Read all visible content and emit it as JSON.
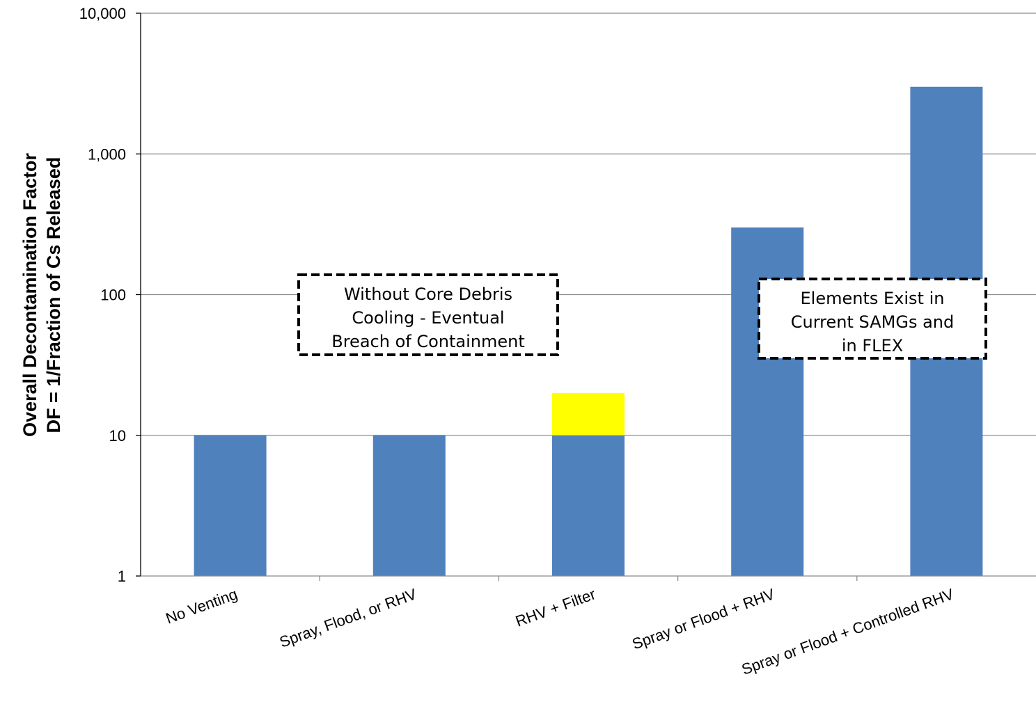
{
  "chart_data": {
    "type": "bar",
    "scale": "log",
    "ylim": [
      1,
      10000
    ],
    "yticks": [
      "1",
      "10",
      "100",
      "1,000",
      "10,000"
    ],
    "ylabel_lines": [
      "Overall Decontamination Factor",
      "DF = 1/Fraction of Cs Released"
    ],
    "xlabel": "",
    "grid": true,
    "categories": [
      "No Venting",
      "Spray, Flood, or RHV",
      "RHV + Filter",
      "Spray or Flood + RHV",
      "Spray or Flood + Controlled RHV"
    ],
    "series": [
      {
        "values": [
          10,
          10,
          10,
          300,
          3000
        ],
        "color": "#4F81BD"
      },
      {
        "values": [
          0,
          0,
          10,
          0,
          0
        ],
        "color": "#FFFF00"
      }
    ],
    "annotations": [
      {
        "lines": [
          "Without Core Debris",
          "Cooling - Eventual",
          "Breach of Containment"
        ]
      },
      {
        "lines": [
          "Elements Exist in",
          "Current SAMGs and",
          "in FLEX"
        ]
      }
    ]
  }
}
